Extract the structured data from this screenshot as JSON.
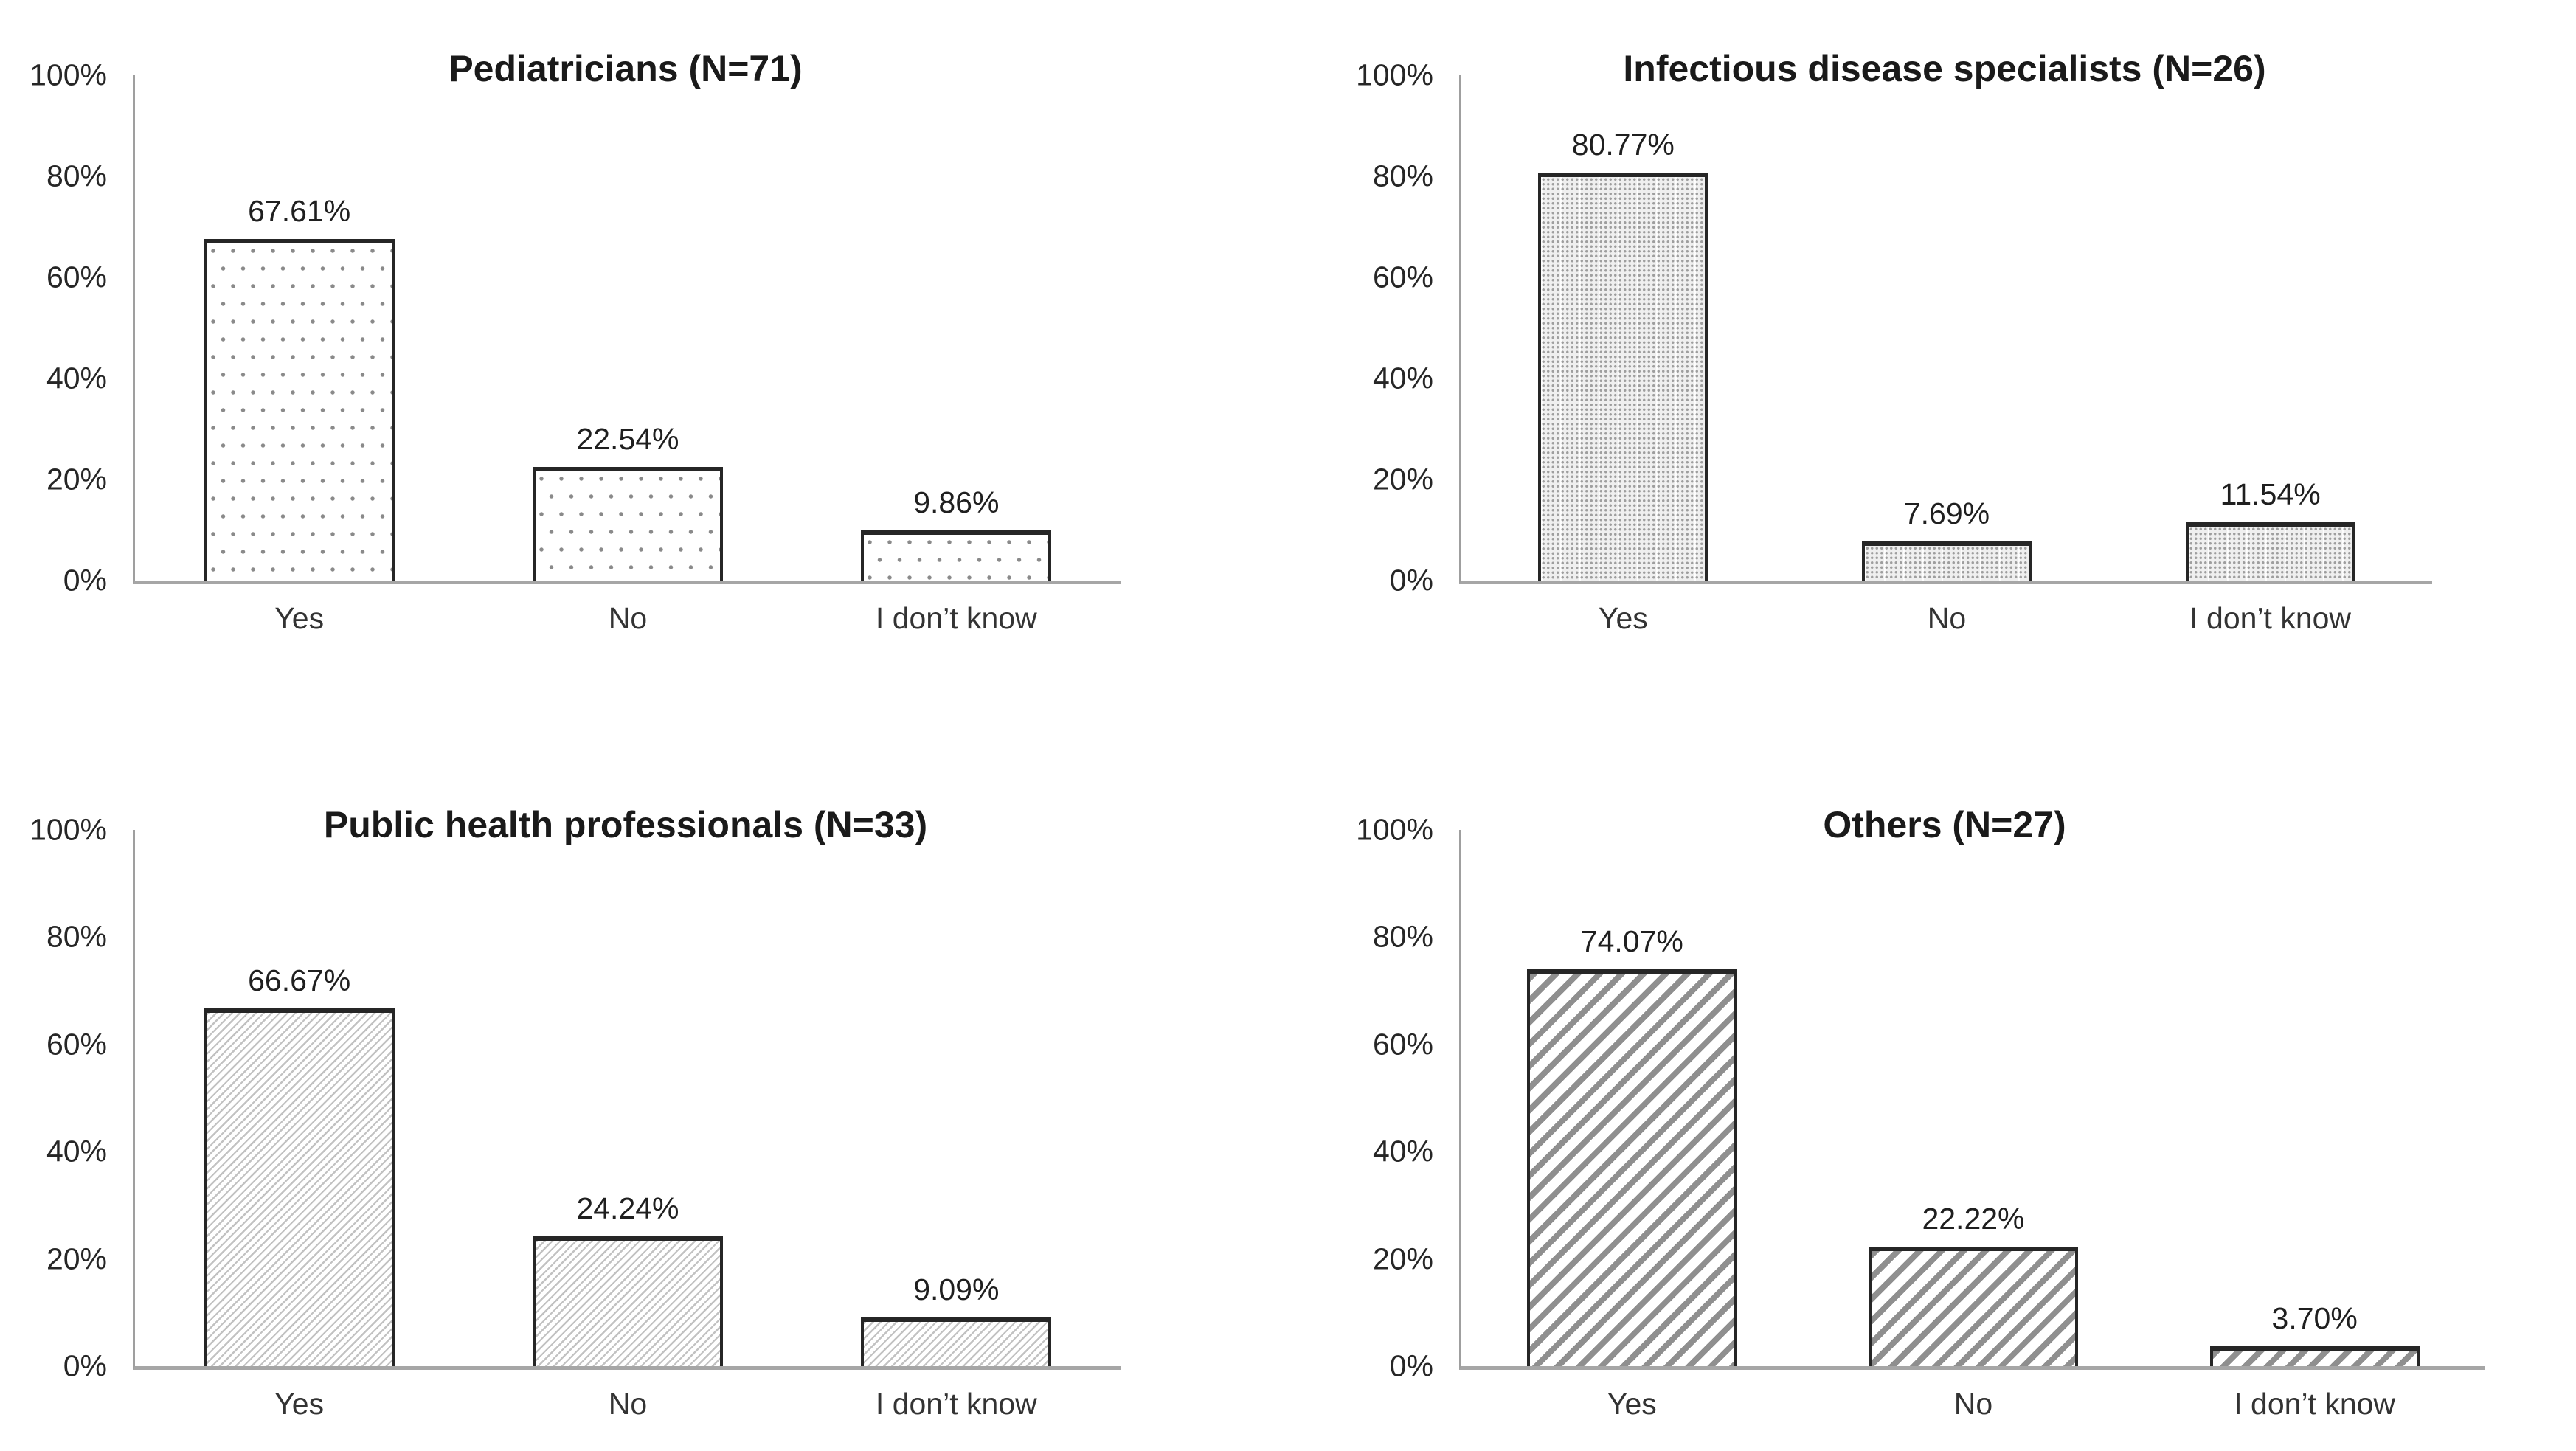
{
  "figure": {
    "y_ticks": [
      "0%",
      "20%",
      "40%",
      "60%",
      "80%",
      "100%"
    ],
    "categories": [
      "Yes",
      "No",
      "I don’t know"
    ],
    "colors": {
      "background": "#ffffff",
      "bar_border": "#262626",
      "axis_line": "#a6a6a6",
      "title_text": "#1a1a1a",
      "label_text": "#262626",
      "pattern_dots": "#8a8a8a",
      "pattern_grid": "#9e9e9e",
      "pattern_hatch_fine": "#c2c2c2",
      "pattern_hatch_bold": "#8f8f8f"
    },
    "panels": [
      {
        "id": "pediatricians",
        "title": "Pediatricians (N=71)",
        "pattern": "dots",
        "pattern_desc": "sparse-dots",
        "bars": [
          {
            "label": "Yes",
            "value": 67.61,
            "display": "67.61%"
          },
          {
            "label": "No",
            "value": 22.54,
            "display": "22.54%"
          },
          {
            "label": "I don’t know",
            "value": 9.86,
            "display": "9.86%"
          }
        ]
      },
      {
        "id": "infectious-disease-specialists",
        "title": "Infectious disease specialists (N=26)",
        "pattern": "grid",
        "pattern_desc": "dense-dot-grid",
        "bars": [
          {
            "label": "Yes",
            "value": 80.77,
            "display": "80.77%"
          },
          {
            "label": "No",
            "value": 7.69,
            "display": "7.69%"
          },
          {
            "label": "I don’t know",
            "value": 11.54,
            "display": "11.54%"
          }
        ]
      },
      {
        "id": "public-health-professionals",
        "title": "Public health professionals (N=33)",
        "pattern": "hatch-fine",
        "pattern_desc": "fine-diagonal-hatch",
        "bars": [
          {
            "label": "Yes",
            "value": 66.67,
            "display": "66.67%"
          },
          {
            "label": "No",
            "value": 24.24,
            "display": "24.24%"
          },
          {
            "label": "I don’t know",
            "value": 9.09,
            "display": "9.09%"
          }
        ]
      },
      {
        "id": "others",
        "title": "Others (N=27)",
        "pattern": "hatch-bold",
        "pattern_desc": "bold-diagonal-stripes",
        "bars": [
          {
            "label": "Yes",
            "value": 74.07,
            "display": "74.07%"
          },
          {
            "label": "No",
            "value": 22.22,
            "display": "22.22%"
          },
          {
            "label": "I don’t know",
            "value": 3.7,
            "display": "3.70%"
          }
        ]
      }
    ]
  },
  "chart_data": [
    {
      "type": "bar",
      "title": "Pediatricians (N=71)",
      "categories": [
        "Yes",
        "No",
        "I don’t know"
      ],
      "values": [
        67.61,
        22.54,
        9.86
      ],
      "value_labels": [
        "67.61%",
        "22.54%",
        "9.86%"
      ],
      "xlabel": "",
      "ylabel": "",
      "ylim": [
        0,
        100
      ],
      "y_ticks": [
        "0%",
        "20%",
        "40%",
        "60%",
        "80%",
        "100%"
      ],
      "grid": false,
      "legend": false,
      "bar_fill": "sparse gray dots on white, black border"
    },
    {
      "type": "bar",
      "title": "Infectious disease specialists (N=26)",
      "categories": [
        "Yes",
        "No",
        "I don’t know"
      ],
      "values": [
        80.77,
        7.69,
        11.54
      ],
      "value_labels": [
        "80.77%",
        "7.69%",
        "11.54%"
      ],
      "xlabel": "",
      "ylabel": "",
      "ylim": [
        0,
        100
      ],
      "y_ticks": [
        "0%",
        "20%",
        "40%",
        "60%",
        "80%",
        "100%"
      ],
      "grid": false,
      "legend": false,
      "bar_fill": "dense fine dot-grid texture on light gray, black border"
    },
    {
      "type": "bar",
      "title": "Public health professionals (N=33)",
      "categories": [
        "Yes",
        "No",
        "I don’t know"
      ],
      "values": [
        66.67,
        24.24,
        9.09
      ],
      "value_labels": [
        "66.67%",
        "24.24%",
        "9.09%"
      ],
      "xlabel": "",
      "ylabel": "",
      "ylim": [
        0,
        100
      ],
      "y_ticks": [
        "0%",
        "20%",
        "40%",
        "60%",
        "80%",
        "100%"
      ],
      "grid": false,
      "legend": false,
      "bar_fill": "fine light diagonal hatch (/) on white, black border"
    },
    {
      "type": "bar",
      "title": "Others (N=27)",
      "categories": [
        "Yes",
        "No",
        "I don’t know"
      ],
      "values": [
        74.07,
        22.22,
        3.7
      ],
      "value_labels": [
        "74.07%",
        "22.22%",
        "3.70%"
      ],
      "xlabel": "",
      "ylabel": "",
      "ylim": [
        0,
        100
      ],
      "y_ticks": [
        "0%",
        "20%",
        "40%",
        "60%",
        "80%",
        "100%"
      ],
      "grid": false,
      "legend": false,
      "bar_fill": "bold gray diagonal stripes (/) on white, black border"
    }
  ]
}
